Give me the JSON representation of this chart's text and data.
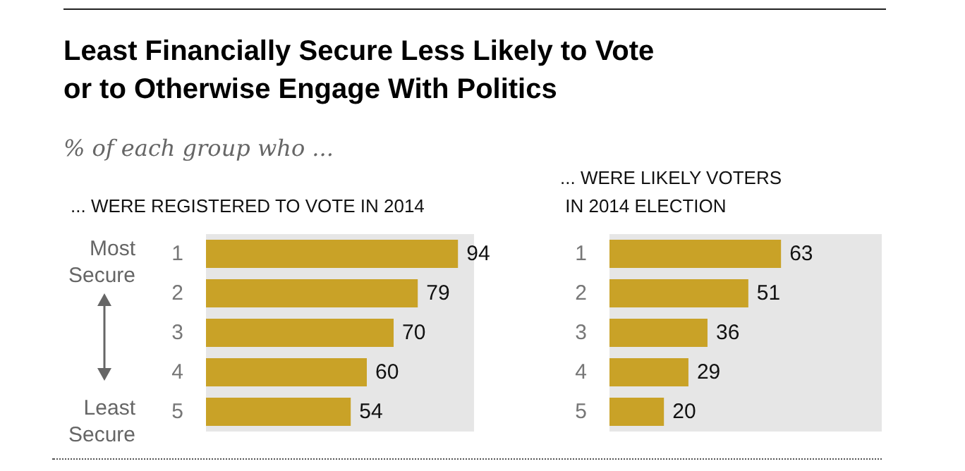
{
  "chart_data": [
    {
      "type": "bar",
      "orientation": "horizontal",
      "title": "Least Financially Secure Less Likely to Vote or to Otherwise Engage With Politics",
      "subtitle": "% of each group who ...",
      "xlabel": "... WERE REGISTERED TO VOTE IN 2014",
      "categories": [
        "1",
        "2",
        "3",
        "4",
        "5"
      ],
      "values": [
        94,
        79,
        70,
        60,
        54
      ],
      "color": "#c9a227",
      "xlim": [
        0,
        100
      ],
      "tick_labels": "y",
      "data_labels": true,
      "bands": [
        {
          "axis": "x",
          "from": 0,
          "to": 100,
          "color": "#e6e6e6"
        }
      ],
      "annotations": [
        "Most Secure",
        "Least Secure"
      ]
    },
    {
      "type": "bar",
      "orientation": "horizontal",
      "xlabel": "... WERE LIKELY VOTERS IN 2014 ELECTION",
      "categories": [
        "1",
        "2",
        "3",
        "4",
        "5"
      ],
      "values": [
        63,
        51,
        36,
        29,
        20
      ],
      "color": "#c9a227",
      "xlim": [
        0,
        100
      ],
      "tick_labels": "y",
      "data_labels": true,
      "bands": [
        {
          "axis": "x",
          "from": 0,
          "to": 100,
          "color": "#e6e6e6"
        }
      ]
    }
  ]
}
